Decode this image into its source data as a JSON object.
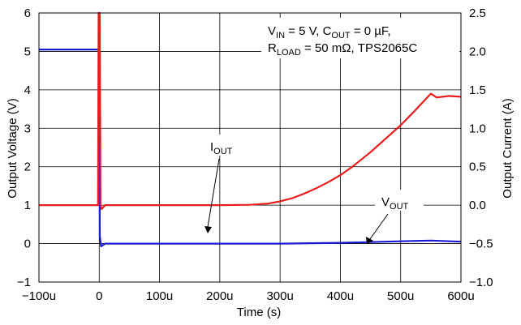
{
  "chart_data": {
    "type": "line",
    "xlabel": "Time (s)",
    "ylabel_left": "Output Voltage (V)",
    "ylabel_right": "Output Current (A)",
    "xlim": [
      -0.0001,
      0.0006
    ],
    "ylim_left": [
      -1,
      6
    ],
    "ylim_right": [
      -1.0,
      2.5
    ],
    "grid": true,
    "x_ticks": [
      {
        "v": -0.0001,
        "label": "−100u"
      },
      {
        "v": 0,
        "label": "0"
      },
      {
        "v": 0.0001,
        "label": "100u"
      },
      {
        "v": 0.0002,
        "label": "200u"
      },
      {
        "v": 0.0003,
        "label": "300u"
      },
      {
        "v": 0.0004,
        "label": "400u"
      },
      {
        "v": 0.0005,
        "label": "500u"
      },
      {
        "v": 0.0006,
        "label": "600u"
      }
    ],
    "y_ticks_left": [
      {
        "v": -1,
        "label": "−1"
      },
      {
        "v": 0,
        "label": "0"
      },
      {
        "v": 1,
        "label": "1"
      },
      {
        "v": 2,
        "label": "2"
      },
      {
        "v": 3,
        "label": "3"
      },
      {
        "v": 4,
        "label": "4"
      },
      {
        "v": 5,
        "label": "5"
      },
      {
        "v": 6,
        "label": "6"
      }
    ],
    "y_ticks_right": [
      {
        "v": -1.0,
        "label": "−1.0"
      },
      {
        "v": -0.5,
        "label": "−0.5"
      },
      {
        "v": 0.0,
        "label": "0.0"
      },
      {
        "v": 0.5,
        "label": "0.5"
      },
      {
        "v": 1.0,
        "label": "1.0"
      },
      {
        "v": 1.5,
        "label": "1.5"
      },
      {
        "v": 2.0,
        "label": "2.0"
      },
      {
        "v": 2.5,
        "label": "2.5"
      }
    ],
    "series": [
      {
        "name": "VOUT",
        "axis": "left",
        "color": "#1a1ad4",
        "x": [
          -0.0001,
          -5e-05,
          -5e-06,
          0,
          1e-06,
          3e-06,
          1e-05,
          5e-05,
          0.0001,
          0.00015,
          0.0002,
          0.00025,
          0.0003,
          0.00035,
          0.0004,
          0.00045,
          0.0005,
          0.00055,
          0.0006
        ],
        "y": [
          5.05,
          5.05,
          5.05,
          5.05,
          0.2,
          -0.07,
          0.0,
          0.0,
          0.0,
          0.0,
          0.0,
          0.0,
          0.0,
          0.01,
          0.02,
          0.04,
          0.06,
          0.08,
          0.05
        ]
      },
      {
        "name": "IOUT",
        "axis": "right",
        "color": "#e81c1c",
        "x": [
          -0.0001,
          -5e-05,
          -2e-06,
          -1e-06,
          0,
          1e-06,
          2e-06,
          4e-06,
          1e-05,
          5e-05,
          0.0001,
          0.00015,
          0.0002,
          0.00025,
          0.00028,
          0.0003,
          0.00032,
          0.00034,
          0.00036,
          0.00038,
          0.0004,
          0.00042,
          0.00045,
          0.00048,
          0.0005,
          0.00052,
          0.00055,
          0.00056,
          0.00058,
          0.0006
        ],
        "y": [
          0.0,
          0.0,
          0.0,
          2.5,
          2.5,
          2.5,
          0.0,
          -0.05,
          0.0,
          0.0,
          0.0,
          0.0,
          0.0,
          0.005,
          0.02,
          0.05,
          0.09,
          0.15,
          0.22,
          0.3,
          0.39,
          0.5,
          0.69,
          0.9,
          1.04,
          1.2,
          1.45,
          1.4,
          1.42,
          1.41
        ]
      }
    ],
    "annotations": {
      "cond_line1": {
        "vin_main": "V",
        "vin_sub": "IN",
        "vin_rest": " = 5 V,  C",
        "cout_sub": "OUT",
        "cout_rest": " = 0 µF,"
      },
      "cond_line2": {
        "r_main": "R",
        "r_sub": "LOAD",
        "r_rest": " = 50 mΩ,  TPS2065C"
      },
      "iout": {
        "main": "I",
        "sub": "OUT"
      },
      "vout": {
        "main": "V",
        "sub": "OUT"
      }
    }
  }
}
